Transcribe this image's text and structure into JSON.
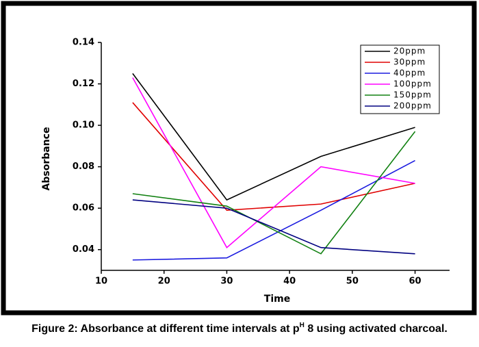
{
  "chart_data": {
    "type": "line",
    "x_label": "Time",
    "y_label": "Absorbance",
    "caption": [
      "Figure 2: Absorbance at different time intervals at p",
      "H",
      " 8 using activated charcoal."
    ],
    "x": [
      15,
      30,
      45,
      60
    ],
    "series": [
      {
        "name": "20ppm",
        "color": "#000000",
        "values": [
          0.125,
          0.064,
          0.085,
          0.099
        ]
      },
      {
        "name": "30ppm",
        "color": "#e00000",
        "values": [
          0.111,
          0.059,
          0.062,
          0.072
        ]
      },
      {
        "name": "40ppm",
        "color": "#1a1adf",
        "values": [
          0.035,
          0.036,
          0.059,
          0.083
        ]
      },
      {
        "name": "100ppm",
        "color": "#ff00ff",
        "values": [
          0.123,
          0.041,
          0.08,
          0.072
        ]
      },
      {
        "name": "150ppm",
        "color": "#108010",
        "values": [
          0.067,
          0.061,
          0.038,
          0.097
        ]
      },
      {
        "name": "200ppm",
        "color": "#000080",
        "values": [
          0.064,
          0.06,
          0.041,
          0.038
        ]
      }
    ],
    "xlim": [
      10,
      65.5
    ],
    "xticks": [
      10,
      20,
      30,
      40,
      50,
      60
    ],
    "ylim": [
      0.03,
      0.14
    ],
    "yticks": [
      0.04,
      0.06,
      0.08,
      {
        "value": 0.1,
        "label": "0.10"
      },
      0.12,
      0.14
    ],
    "legend": "top-right",
    "grid": false
  }
}
